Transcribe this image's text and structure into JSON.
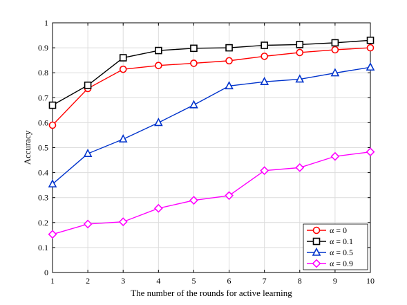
{
  "chart_data": {
    "type": "line",
    "xlabel": "The number of the rounds for active learning",
    "ylabel": "Accuracy",
    "x": [
      1,
      2,
      3,
      4,
      5,
      6,
      7,
      8,
      9,
      10
    ],
    "xlim": [
      1,
      10
    ],
    "ylim": [
      0,
      1
    ],
    "xticks": [
      "1",
      "2",
      "3",
      "4",
      "5",
      "6",
      "7",
      "8",
      "9",
      "10"
    ],
    "yticks": [
      "0",
      "0.1",
      "0.2",
      "0.3",
      "0.4",
      "0.5",
      "0.6",
      "0.7",
      "0.8",
      "0.9",
      "1"
    ],
    "grid": true,
    "legend_position": "bottom-right",
    "series": [
      {
        "name": "α = 0",
        "color": "#ff0000",
        "marker": "circle",
        "values": [
          0.59,
          0.737,
          0.814,
          0.829,
          0.838,
          0.848,
          0.866,
          0.881,
          0.892,
          0.9
        ]
      },
      {
        "name": "α = 0.1",
        "color": "#000000",
        "marker": "square",
        "values": [
          0.67,
          0.75,
          0.86,
          0.889,
          0.898,
          0.9,
          0.91,
          0.913,
          0.92,
          0.93
        ]
      },
      {
        "name": "α = 0.5",
        "color": "#0033cc",
        "marker": "triangle",
        "values": [
          0.354,
          0.476,
          0.534,
          0.6,
          0.671,
          0.747,
          0.764,
          0.774,
          0.799,
          0.822
        ]
      },
      {
        "name": "α = 0.9",
        "color": "#ff00ff",
        "marker": "diamond",
        "values": [
          0.153,
          0.194,
          0.203,
          0.257,
          0.289,
          0.308,
          0.408,
          0.42,
          0.465,
          0.483
        ]
      }
    ]
  }
}
